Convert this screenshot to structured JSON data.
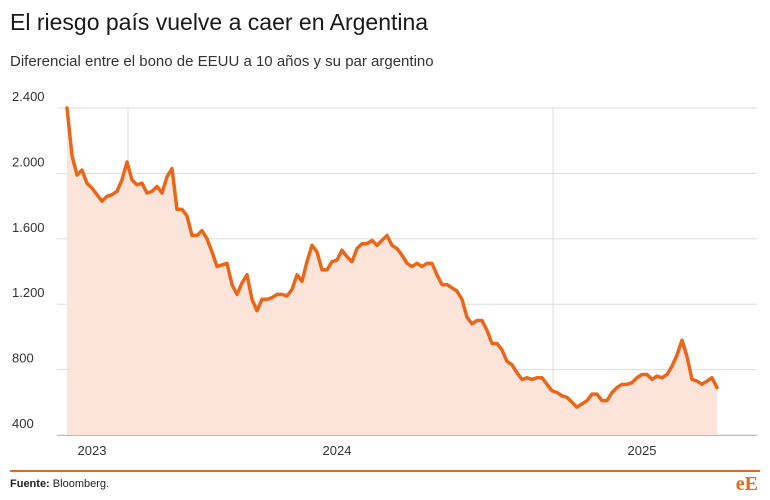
{
  "chart_data": {
    "type": "area",
    "title": "El riesgo país vuelve a caer en Argentina",
    "subtitle": "Diferencial entre el bono de EEUU a 10 años y su par argentino",
    "source_label": "Fuente:",
    "source": "Bloomberg.",
    "logo": "eE",
    "color": "#e8671a",
    "fill": "#fde4da",
    "grid": true,
    "ylim": [
      400,
      2400
    ],
    "yticks": [
      400,
      800,
      {
        "value": 1200,
        "label": "1.200"
      },
      {
        "value": 1600,
        "label": "1.600"
      },
      {
        "value": 2000,
        "label": "2.000"
      },
      {
        "value": 2400,
        "label": "2.400"
      }
    ],
    "categories": [
      null,
      null,
      null,
      null,
      null,
      "2023",
      null,
      null,
      null,
      null,
      null,
      null,
      null,
      null,
      null,
      null,
      null,
      null,
      null,
      null,
      null,
      null,
      null,
      null,
      null,
      null,
      null,
      null,
      null,
      null,
      null,
      null,
      null,
      null,
      null,
      null,
      null,
      null,
      null,
      null,
      null,
      null,
      null,
      null,
      null,
      null,
      null,
      null,
      null,
      null,
      null,
      null,
      null,
      null,
      "2024",
      null,
      null,
      null,
      null,
      null,
      null,
      null,
      null,
      null,
      null,
      null,
      null,
      null,
      null,
      null,
      null,
      null,
      null,
      null,
      null,
      null,
      null,
      null,
      null,
      null,
      null,
      null,
      null,
      null,
      null,
      null,
      null,
      null,
      null,
      null,
      null,
      null,
      null,
      null,
      null,
      null,
      null,
      null,
      null,
      null,
      null,
      null,
      null,
      null,
      null,
      null,
      null,
      null,
      null,
      null,
      null,
      null,
      null,
      null,
      null,
      "2025",
      null,
      null,
      null,
      null,
      null,
      null,
      null,
      null,
      null,
      null,
      null,
      null,
      null,
      null,
      null
    ],
    "values": [
      2400,
      2110,
      1990,
      2020,
      1940,
      1910,
      1870,
      1830,
      1860,
      1870,
      1890,
      1960,
      2070,
      1960,
      1930,
      1940,
      1880,
      1890,
      1920,
      1880,
      1980,
      2030,
      1780,
      1780,
      1740,
      1620,
      1620,
      1650,
      1600,
      1520,
      1430,
      1440,
      1450,
      1320,
      1260,
      1330,
      1380,
      1230,
      1160,
      1230,
      1230,
      1240,
      1260,
      1260,
      1250,
      1290,
      1380,
      1340,
      1460,
      1560,
      1520,
      1410,
      1410,
      1460,
      1470,
      1530,
      1490,
      1460,
      1540,
      1570,
      1570,
      1590,
      1560,
      1590,
      1620,
      1560,
      1540,
      1500,
      1450,
      1430,
      1450,
      1430,
      1450,
      1450,
      1380,
      1320,
      1320,
      1300,
      1280,
      1230,
      1120,
      1080,
      1100,
      1100,
      1040,
      960,
      960,
      920,
      850,
      830,
      780,
      740,
      750,
      740,
      750,
      750,
      710,
      670,
      660,
      640,
      630,
      600,
      570,
      590,
      610,
      650,
      650,
      610,
      610,
      660,
      690,
      710,
      710,
      720,
      750,
      770,
      770,
      740,
      760,
      750,
      770,
      820,
      890,
      980,
      880,
      740,
      730,
      710,
      730,
      750,
      690
    ]
  }
}
